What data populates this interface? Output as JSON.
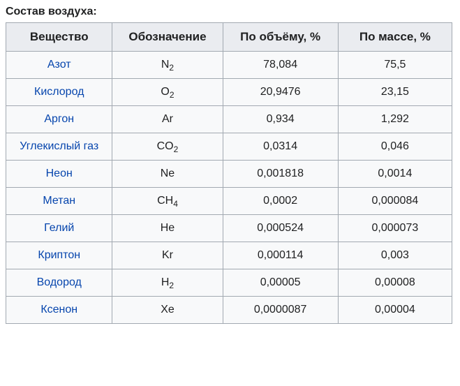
{
  "caption": "Состав воздуха:",
  "table": {
    "columns": [
      "Вещество",
      "Обозначение",
      "По объёму, %",
      "По массе, %"
    ],
    "rows": [
      {
        "substance": "Азот",
        "notation_base": "N",
        "notation_sub": "2",
        "volume": "78,084",
        "mass": "75,5"
      },
      {
        "substance": "Кислород",
        "notation_base": "O",
        "notation_sub": "2",
        "volume": "20,9476",
        "mass": "23,15"
      },
      {
        "substance": "Аргон",
        "notation_base": "Ar",
        "notation_sub": "",
        "volume": "0,934",
        "mass": "1,292"
      },
      {
        "substance": "Углекислый газ",
        "notation_base": "CO",
        "notation_sub": "2",
        "volume": "0,0314",
        "mass": "0,046"
      },
      {
        "substance": "Неон",
        "notation_base": "Ne",
        "notation_sub": "",
        "volume": "0,001818",
        "mass": "0,0014"
      },
      {
        "substance": "Метан",
        "notation_base": "CH",
        "notation_sub": "4",
        "volume": "0,0002",
        "mass": "0,000084"
      },
      {
        "substance": "Гелий",
        "notation_base": "He",
        "notation_sub": "",
        "volume": "0,000524",
        "mass": "0,000073"
      },
      {
        "substance": "Криптон",
        "notation_base": "Kr",
        "notation_sub": "",
        "volume": "0,000114",
        "mass": "0,003"
      },
      {
        "substance": "Водород",
        "notation_base": "H",
        "notation_sub": "2",
        "volume": "0,00005",
        "mass": "0,00008"
      },
      {
        "substance": "Ксенон",
        "notation_base": "Xe",
        "notation_sub": "",
        "volume": "0,0000087",
        "mass": "0,00004"
      }
    ]
  },
  "style": {
    "link_color": "#0645ad",
    "header_bg": "#eaecf0",
    "border_color": "#a2a9b1",
    "row_bg": "#f8f9fa",
    "text_color": "#202122",
    "caption_fontsize": 16,
    "header_fontsize": 17,
    "cell_fontsize": 16
  }
}
